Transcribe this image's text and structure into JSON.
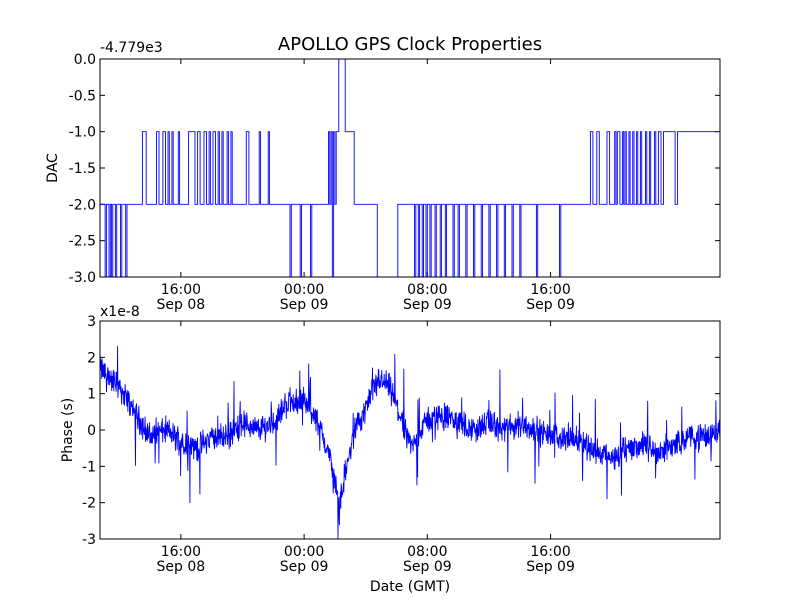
{
  "figure": {
    "title": "APOLLO GPS Clock Properties"
  },
  "chart_data": [
    {
      "type": "line",
      "panel": "top",
      "title": "APOLLO GPS Clock Properties",
      "ylabel": "DAC",
      "xlabel": "",
      "offset_label": "-4.779e3",
      "ylim": [
        -3.0,
        0.0
      ],
      "yticks": [
        "0.0",
        "-0.5",
        "-1.0",
        "-1.5",
        "-2.0",
        "-2.5",
        "-3.0"
      ],
      "xticks": [
        {
          "time": "16:00",
          "date": "Sep 08"
        },
        {
          "time": "00:00",
          "date": "Sep 09"
        },
        {
          "time": "08:00",
          "date": "Sep 09"
        },
        {
          "time": "16:00",
          "date": "Sep 09"
        }
      ],
      "x_range": [
        "Sep 08 10:45",
        "Sep 10 03:00"
      ],
      "series": [
        {
          "color": "#0000ff",
          "points": [
            [
              "Sep 08 10:45",
              -2.0
            ],
            [
              "Sep 08 11:00",
              -2.0
            ],
            [
              "Sep 08 11:05",
              -3.0
            ],
            [
              "Sep 08 11:10",
              -2.0
            ],
            [
              "Sep 08 11:20",
              -3.0
            ],
            [
              "Sep 08 11:25",
              -2.0
            ],
            [
              "Sep 08 11:30",
              -3.0
            ],
            [
              "Sep 08 11:35",
              -2.0
            ],
            [
              "Sep 08 11:45",
              -3.0
            ],
            [
              "Sep 08 11:50",
              -2.0
            ],
            [
              "Sep 08 12:05",
              -3.0
            ],
            [
              "Sep 08 12:10",
              -2.0
            ],
            [
              "Sep 08 12:20",
              -2.0
            ],
            [
              "Sep 08 12:25",
              -3.0
            ],
            [
              "Sep 08 12:30",
              -2.0
            ],
            [
              "Sep 08 13:00",
              -2.0
            ],
            [
              "Sep 08 13:25",
              -2.0
            ],
            [
              "Sep 08 13:30",
              -1.0
            ],
            [
              "Sep 08 13:45",
              -2.0
            ],
            [
              "Sep 08 14:20",
              -2.0
            ],
            [
              "Sep 08 14:25",
              -1.0
            ],
            [
              "Sep 08 14:35",
              -2.0
            ],
            [
              "Sep 08 14:50",
              -1.0
            ],
            [
              "Sep 08 15:00",
              -2.0
            ],
            [
              "Sep 08 15:10",
              -1.0
            ],
            [
              "Sep 08 15:15",
              -2.0
            ],
            [
              "Sep 08 15:25",
              -1.0
            ],
            [
              "Sep 08 15:30",
              -2.0
            ],
            [
              "Sep 08 15:40",
              -2.0
            ],
            [
              "Sep 08 15:50",
              -1.0
            ],
            [
              "Sep 08 15:55",
              -2.0
            ],
            [
              "Sep 08 16:25",
              -2.0
            ],
            [
              "Sep 08 16:30",
              -1.0
            ],
            [
              "Sep 08 16:55",
              -2.0
            ],
            [
              "Sep 08 17:05",
              -1.0
            ],
            [
              "Sep 08 17:15",
              -2.0
            ],
            [
              "Sep 08 17:30",
              -1.0
            ],
            [
              "Sep 08 17:40",
              -2.0
            ],
            [
              "Sep 08 17:50",
              -1.0
            ],
            [
              "Sep 08 17:55",
              -2.0
            ],
            [
              "Sep 08 18:05",
              -1.0
            ],
            [
              "Sep 08 18:15",
              -2.0
            ],
            [
              "Sep 08 18:25",
              -1.0
            ],
            [
              "Sep 08 18:30",
              -2.0
            ],
            [
              "Sep 08 18:40",
              -1.0
            ],
            [
              "Sep 08 18:45",
              -2.0
            ],
            [
              "Sep 08 19:00",
              -1.0
            ],
            [
              "Sep 08 19:05",
              -2.0
            ],
            [
              "Sep 08 19:15",
              -1.0
            ],
            [
              "Sep 08 19:20",
              -2.0
            ],
            [
              "Sep 08 20:10",
              -2.0
            ],
            [
              "Sep 08 20:15",
              -1.0
            ],
            [
              "Sep 08 20:25",
              -2.0
            ],
            [
              "Sep 08 20:55",
              -2.0
            ],
            [
              "Sep 08 21:05",
              -1.0
            ],
            [
              "Sep 08 21:10",
              -2.0
            ],
            [
              "Sep 08 21:35",
              -2.0
            ],
            [
              "Sep 08 21:40",
              -1.0
            ],
            [
              "Sep 08 21:45",
              -2.0
            ],
            [
              "Sep 08 22:30",
              -2.0
            ],
            [
              "Sep 08 23:00",
              -2.0
            ],
            [
              "Sep 08 23:05",
              -3.0
            ],
            [
              "Sep 08 23:10",
              -2.0
            ],
            [
              "Sep 08 23:40",
              -2.0
            ],
            [
              "Sep 08 23:45",
              -3.0
            ],
            [
              "Sep 08 23:50",
              -2.0
            ],
            [
              "Sep 09 00:20",
              -2.0
            ],
            [
              "Sep 09 00:25",
              -3.0
            ],
            [
              "Sep 09 00:30",
              -2.0
            ],
            [
              "Sep 09 01:30",
              -2.0
            ],
            [
              "Sep 09 01:35",
              -1.0
            ],
            [
              "Sep 09 01:40",
              -2.0
            ],
            [
              "Sep 09 01:45",
              -1.0
            ],
            [
              "Sep 09 01:50",
              -3.0
            ],
            [
              "Sep 09 01:55",
              -1.0
            ],
            [
              "Sep 09 02:00",
              -2.0
            ],
            [
              "Sep 09 02:05",
              -1.0
            ],
            [
              "Sep 09 02:10",
              -1.0
            ],
            [
              "Sep 09 02:15",
              0.0
            ],
            [
              "Sep 09 02:35",
              0.0
            ],
            [
              "Sep 09 02:40",
              -1.0
            ],
            [
              "Sep 09 03:10",
              -1.0
            ],
            [
              "Sep 09 03:15",
              -2.0
            ],
            [
              "Sep 09 03:40",
              -2.0
            ],
            [
              "Sep 09 04:40",
              -2.0
            ],
            [
              "Sep 09 04:45",
              -3.0
            ],
            [
              "Sep 09 05:00",
              -3.0
            ],
            [
              "Sep 09 06:00",
              -3.0
            ],
            [
              "Sep 09 06:05",
              -2.0
            ],
            [
              "Sep 09 07:05",
              -2.0
            ],
            [
              "Sep 09 07:10",
              -3.0
            ],
            [
              "Sep 09 07:15",
              -2.0
            ],
            [
              "Sep 09 07:25",
              -3.0
            ],
            [
              "Sep 09 07:30",
              -2.0
            ],
            [
              "Sep 09 07:40",
              -3.0
            ],
            [
              "Sep 09 07:45",
              -2.0
            ],
            [
              "Sep 09 07:55",
              -3.0
            ],
            [
              "Sep 09 08:00",
              -2.0
            ],
            [
              "Sep 09 08:10",
              -3.0
            ],
            [
              "Sep 09 08:15",
              -2.0
            ],
            [
              "Sep 09 08:30",
              -3.0
            ],
            [
              "Sep 09 08:35",
              -2.0
            ],
            [
              "Sep 09 08:50",
              -3.0
            ],
            [
              "Sep 09 08:55",
              -2.0
            ],
            [
              "Sep 09 09:10",
              -3.0
            ],
            [
              "Sep 09 09:15",
              -2.0
            ],
            [
              "Sep 09 09:40",
              -3.0
            ],
            [
              "Sep 09 09:45",
              -2.0
            ],
            [
              "Sep 09 10:00",
              -3.0
            ],
            [
              "Sep 09 10:05",
              -2.0
            ],
            [
              "Sep 09 10:30",
              -3.0
            ],
            [
              "Sep 09 10:35",
              -2.0
            ],
            [
              "Sep 09 11:00",
              -3.0
            ],
            [
              "Sep 09 11:05",
              -2.0
            ],
            [
              "Sep 09 11:30",
              -3.0
            ],
            [
              "Sep 09 11:35",
              -2.0
            ],
            [
              "Sep 09 12:00",
              -3.0
            ],
            [
              "Sep 09 12:05",
              -2.0
            ],
            [
              "Sep 09 12:30",
              -3.0
            ],
            [
              "Sep 09 12:35",
              -2.0
            ],
            [
              "Sep 09 13:00",
              -3.0
            ],
            [
              "Sep 09 13:05",
              -2.0
            ],
            [
              "Sep 09 13:30",
              -3.0
            ],
            [
              "Sep 09 13:35",
              -2.0
            ],
            [
              "Sep 09 14:00",
              -3.0
            ],
            [
              "Sep 09 14:05",
              -2.0
            ],
            [
              "Sep 09 15:00",
              -2.0
            ],
            [
              "Sep 09 15:05",
              -3.0
            ],
            [
              "Sep 09 15:10",
              -2.0
            ],
            [
              "Sep 09 16:30",
              -2.0
            ],
            [
              "Sep 09 16:35",
              -3.0
            ],
            [
              "Sep 09 16:40",
              -2.0
            ],
            [
              "Sep 09 18:00",
              -2.0
            ],
            [
              "Sep 09 18:30",
              -2.0
            ],
            [
              "Sep 09 18:35",
              -1.0
            ],
            [
              "Sep 09 18:45",
              -2.0
            ],
            [
              "Sep 09 19:00",
              -1.0
            ],
            [
              "Sep 09 19:10",
              -2.0
            ],
            [
              "Sep 09 19:30",
              -2.0
            ],
            [
              "Sep 09 19:40",
              -1.0
            ],
            [
              "Sep 09 19:50",
              -2.0
            ],
            [
              "Sep 09 20:00",
              -2.0
            ],
            [
              "Sep 09 20:10",
              -1.0
            ],
            [
              "Sep 09 20:15",
              -2.0
            ],
            [
              "Sep 09 20:20",
              -1.0
            ],
            [
              "Sep 09 20:30",
              -2.0
            ],
            [
              "Sep 09 20:40",
              -1.0
            ],
            [
              "Sep 09 20:45",
              -2.0
            ],
            [
              "Sep 09 20:50",
              -1.0
            ],
            [
              "Sep 09 20:55",
              -2.0
            ],
            [
              "Sep 09 21:05",
              -1.0
            ],
            [
              "Sep 09 21:10",
              -2.0
            ],
            [
              "Sep 09 21:20",
              -1.0
            ],
            [
              "Sep 09 21:25",
              -2.0
            ],
            [
              "Sep 09 21:35",
              -1.0
            ],
            [
              "Sep 09 21:40",
              -2.0
            ],
            [
              "Sep 09 21:50",
              -1.0
            ],
            [
              "Sep 09 21:55",
              -2.0
            ],
            [
              "Sep 09 22:10",
              -1.0
            ],
            [
              "Sep 09 22:15",
              -2.0
            ],
            [
              "Sep 09 22:25",
              -1.0
            ],
            [
              "Sep 09 22:30",
              -2.0
            ],
            [
              "Sep 09 22:45",
              -1.0
            ],
            [
              "Sep 09 22:50",
              -2.0
            ],
            [
              "Sep 09 23:00",
              -1.0
            ],
            [
              "Sep 09 23:10",
              -2.0
            ],
            [
              "Sep 09 23:20",
              -1.0
            ],
            [
              "Sep 10 00:00",
              -1.0
            ],
            [
              "Sep 10 00:05",
              -2.0
            ],
            [
              "Sep 10 00:15",
              -1.0
            ],
            [
              "Sep 10 03:00",
              -1.0
            ]
          ]
        }
      ]
    },
    {
      "type": "line",
      "panel": "bottom",
      "ylabel": "Phase (s)",
      "xlabel": "Date (GMT)",
      "offset_label": "x1e-8",
      "ylim": [
        -3,
        3
      ],
      "yticks": [
        "3",
        "2",
        "1",
        "0",
        "-1",
        "-2",
        "-3"
      ],
      "xticks": [
        {
          "time": "16:00",
          "date": "Sep 08"
        },
        {
          "time": "00:00",
          "date": "Sep 09"
        },
        {
          "time": "08:00",
          "date": "Sep 09"
        },
        {
          "time": "16:00",
          "date": "Sep 09"
        }
      ],
      "x_range": [
        "Sep 08 10:45",
        "Sep 10 03:00"
      ],
      "series": [
        {
          "color": "#0000ff",
          "trend_points": [
            [
              "Sep 08 10:45",
              1.7
            ],
            [
              "Sep 08 11:15",
              1.5
            ],
            [
              "Sep 08 12:00",
              1.2
            ],
            [
              "Sep 08 13:00",
              0.5
            ],
            [
              "Sep 08 14:00",
              -0.2
            ],
            [
              "Sep 08 15:00",
              0.0
            ],
            [
              "Sep 08 16:00",
              -0.3
            ],
            [
              "Sep 08 17:00",
              -0.5
            ],
            [
              "Sep 08 18:00",
              -0.2
            ],
            [
              "Sep 08 19:00",
              -0.2
            ],
            [
              "Sep 08 20:00",
              0.2
            ],
            [
              "Sep 08 21:00",
              0.0
            ],
            [
              "Sep 08 22:00",
              0.2
            ],
            [
              "Sep 08 23:00",
              0.8
            ],
            [
              "Sep 09 00:00",
              0.8
            ],
            [
              "Sep 09 00:40",
              0.4
            ],
            [
              "Sep 09 01:20",
              -0.3
            ],
            [
              "Sep 09 01:50",
              -1.0
            ],
            [
              "Sep 09 02:15",
              -2.1
            ],
            [
              "Sep 09 02:40",
              -1.2
            ],
            [
              "Sep 09 03:20",
              0.0
            ],
            [
              "Sep 09 04:00",
              0.6
            ],
            [
              "Sep 09 04:50",
              1.4
            ],
            [
              "Sep 09 05:30",
              1.2
            ],
            [
              "Sep 09 06:20",
              0.3
            ],
            [
              "Sep 09 07:00",
              -0.5
            ],
            [
              "Sep 09 08:00",
              0.3
            ],
            [
              "Sep 09 09:00",
              0.4
            ],
            [
              "Sep 09 10:00",
              0.2
            ],
            [
              "Sep 09 11:00",
              0.0
            ],
            [
              "Sep 09 12:00",
              0.2
            ],
            [
              "Sep 09 13:00",
              0.0
            ],
            [
              "Sep 09 14:00",
              0.2
            ],
            [
              "Sep 09 15:00",
              0.0
            ],
            [
              "Sep 09 16:00",
              -0.2
            ],
            [
              "Sep 09 17:00",
              -0.2
            ],
            [
              "Sep 09 18:00",
              -0.3
            ],
            [
              "Sep 09 19:00",
              -0.6
            ],
            [
              "Sep 09 20:00",
              -0.8
            ],
            [
              "Sep 09 21:00",
              -0.5
            ],
            [
              "Sep 09 22:00",
              -0.4
            ],
            [
              "Sep 09 23:00",
              -0.6
            ],
            [
              "Sep 10 00:00",
              -0.4
            ],
            [
              "Sep 10 01:00",
              -0.2
            ],
            [
              "Sep 10 02:00",
              -0.2
            ],
            [
              "Sep 10 03:00",
              0.0
            ]
          ]
        }
      ]
    }
  ]
}
